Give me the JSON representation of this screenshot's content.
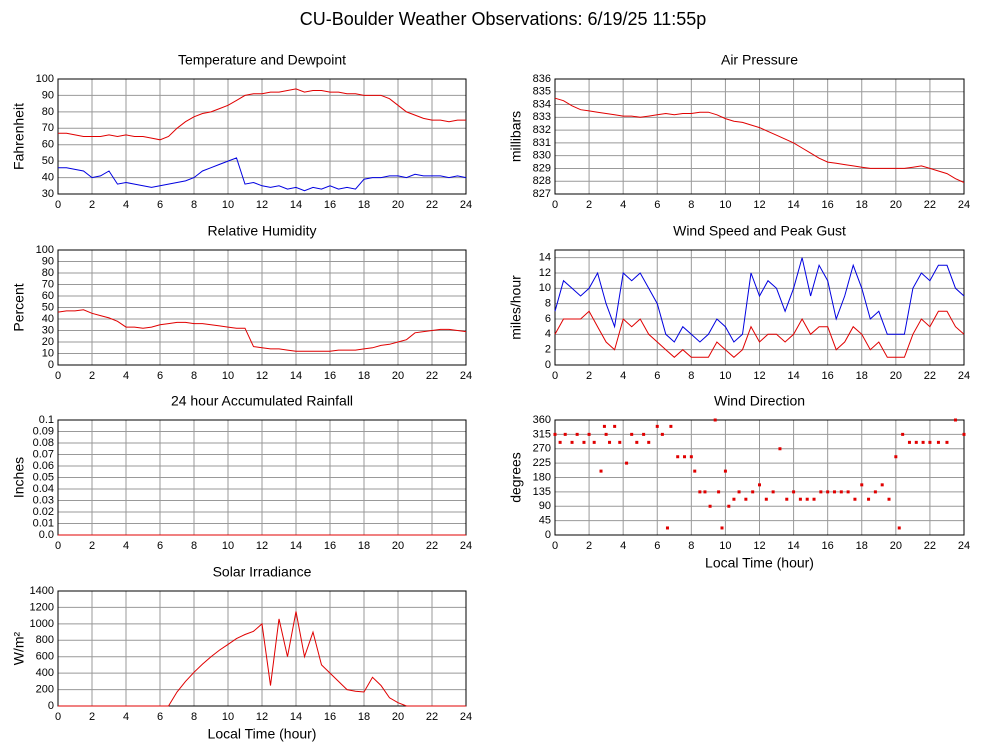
{
  "title": "CU-Boulder Weather Observations: 6/19/25 11:55p",
  "chart_data": [
    {
      "type": "line",
      "title": "Temperature and Dewpoint",
      "ylabel": "Fahrenheit",
      "x": [
        0,
        0.5,
        1,
        1.5,
        2,
        2.5,
        3,
        3.5,
        4,
        4.5,
        5,
        5.5,
        6,
        6.5,
        7,
        7.5,
        8,
        8.5,
        9,
        9.5,
        10,
        10.5,
        11,
        11.5,
        12,
        12.5,
        13,
        13.5,
        14,
        14.5,
        15,
        15.5,
        16,
        16.5,
        17,
        17.5,
        18,
        18.5,
        19,
        19.5,
        20,
        20.5,
        21,
        21.5,
        22,
        22.5,
        23,
        23.5,
        24
      ],
      "series": [
        {
          "color": "#e00000",
          "values": [
            67,
            67,
            66,
            65,
            65,
            65,
            66,
            65,
            66,
            65,
            65,
            64,
            63,
            65,
            70,
            74,
            77,
            79,
            80,
            82,
            84,
            87,
            90,
            91,
            91,
            92,
            92,
            93,
            94,
            92,
            93,
            93,
            92,
            92,
            91,
            91,
            90,
            90,
            90,
            88,
            84,
            80,
            78,
            76,
            75,
            75,
            74,
            75,
            75
          ]
        },
        {
          "color": "#0000e0",
          "values": [
            46,
            46,
            45,
            44,
            40,
            41,
            44,
            36,
            37,
            36,
            35,
            34,
            35,
            36,
            37,
            38,
            40,
            44,
            46,
            48,
            50,
            52,
            36,
            37,
            35,
            34,
            35,
            33,
            34,
            32,
            34,
            33,
            35,
            33,
            34,
            33,
            39,
            40,
            40,
            41,
            41,
            40,
            42,
            41,
            41,
            41,
            40,
            41,
            40
          ]
        }
      ],
      "xlim": [
        0,
        24
      ],
      "xticks": [
        0,
        2,
        4,
        6,
        8,
        10,
        12,
        14,
        16,
        18,
        20,
        22,
        24
      ],
      "ylim": [
        30,
        100
      ],
      "yticks": [
        30,
        40,
        50,
        60,
        70,
        80,
        90,
        100
      ],
      "grid": true
    },
    {
      "type": "line",
      "title": "Air Pressure",
      "ylabel": "millibars",
      "x": [
        0,
        0.5,
        1,
        1.5,
        2,
        2.5,
        3,
        3.5,
        4,
        4.5,
        5,
        5.5,
        6,
        6.5,
        7,
        7.5,
        8,
        8.5,
        9,
        9.5,
        10,
        10.5,
        11,
        11.5,
        12,
        12.5,
        13,
        13.5,
        14,
        14.5,
        15,
        15.5,
        16,
        16.5,
        17,
        17.5,
        18,
        18.5,
        19,
        19.5,
        20,
        20.5,
        21,
        21.5,
        22,
        22.5,
        23,
        23.5,
        24
      ],
      "series": [
        {
          "color": "#e00000",
          "values": [
            834.5,
            834.3,
            833.9,
            833.6,
            833.5,
            833.4,
            833.3,
            833.2,
            833.1,
            833.1,
            833.0,
            833.1,
            833.2,
            833.3,
            833.2,
            833.3,
            833.3,
            833.4,
            833.4,
            833.2,
            832.9,
            832.7,
            832.6,
            832.4,
            832.2,
            831.9,
            831.6,
            831.3,
            831.0,
            830.6,
            830.2,
            829.8,
            829.5,
            829.4,
            829.3,
            829.2,
            829.1,
            829.0,
            829.0,
            829.0,
            829.0,
            829.0,
            829.1,
            829.2,
            829.0,
            828.8,
            828.6,
            828.2,
            827.9
          ]
        }
      ],
      "xlim": [
        0,
        24
      ],
      "xticks": [
        0,
        2,
        4,
        6,
        8,
        10,
        12,
        14,
        16,
        18,
        20,
        22,
        24
      ],
      "ylim": [
        827,
        836
      ],
      "yticks": [
        827,
        828,
        829,
        830,
        831,
        832,
        833,
        834,
        835,
        836
      ],
      "grid": true
    },
    {
      "type": "line",
      "title": "Relative Humidity",
      "ylabel": "Percent",
      "x": [
        0,
        0.5,
        1,
        1.5,
        2,
        2.5,
        3,
        3.5,
        4,
        4.5,
        5,
        5.5,
        6,
        6.5,
        7,
        7.5,
        8,
        8.5,
        9,
        9.5,
        10,
        10.5,
        11,
        11.5,
        12,
        12.5,
        13,
        13.5,
        14,
        14.5,
        15,
        15.5,
        16,
        16.5,
        17,
        17.5,
        18,
        18.5,
        19,
        19.5,
        20,
        20.5,
        21,
        21.5,
        22,
        22.5,
        23,
        23.5,
        24
      ],
      "series": [
        {
          "color": "#e00000",
          "values": [
            46,
            47,
            47,
            48,
            45,
            43,
            41,
            38,
            33,
            33,
            32,
            33,
            35,
            36,
            37,
            37,
            36,
            36,
            35,
            34,
            33,
            32,
            32,
            16,
            15,
            14,
            14,
            13,
            12,
            12,
            12,
            12,
            12,
            13,
            13,
            13,
            14,
            15,
            17,
            18,
            20,
            22,
            28,
            29,
            30,
            31,
            31,
            30,
            29
          ]
        }
      ],
      "xlim": [
        0,
        24
      ],
      "xticks": [
        0,
        2,
        4,
        6,
        8,
        10,
        12,
        14,
        16,
        18,
        20,
        22,
        24
      ],
      "ylim": [
        0,
        100
      ],
      "yticks": [
        0,
        10,
        20,
        30,
        40,
        50,
        60,
        70,
        80,
        90,
        100
      ],
      "grid": true
    },
    {
      "type": "line",
      "title": "Wind Speed and Peak Gust",
      "ylabel": "miles/hour",
      "x": [
        0,
        0.5,
        1,
        1.5,
        2,
        2.5,
        3,
        3.5,
        4,
        4.5,
        5,
        5.5,
        6,
        6.5,
        7,
        7.5,
        8,
        8.5,
        9,
        9.5,
        10,
        10.5,
        11,
        11.5,
        12,
        12.5,
        13,
        13.5,
        14,
        14.5,
        15,
        15.5,
        16,
        16.5,
        17,
        17.5,
        18,
        18.5,
        19,
        19.5,
        20,
        20.5,
        21,
        21.5,
        22,
        22.5,
        23,
        23.5,
        24
      ],
      "series": [
        {
          "color": "#0000e0",
          "values": [
            7,
            11,
            10,
            9,
            10,
            12,
            8,
            5,
            12,
            11,
            12,
            10,
            8,
            4,
            3,
            5,
            4,
            3,
            4,
            6,
            5,
            3,
            4,
            12,
            9,
            11,
            10,
            7,
            10,
            14,
            9,
            13,
            11,
            6,
            9,
            13,
            10,
            6,
            7,
            4,
            4,
            4,
            10,
            12,
            11,
            13,
            13,
            10,
            9
          ]
        },
        {
          "color": "#e00000",
          "values": [
            4,
            6,
            6,
            6,
            7,
            5,
            3,
            2,
            6,
            5,
            6,
            4,
            3,
            2,
            1,
            2,
            1,
            1,
            1,
            3,
            2,
            1,
            2,
            5,
            3,
            4,
            4,
            3,
            4,
            6,
            4,
            5,
            5,
            2,
            3,
            5,
            4,
            2,
            3,
            1,
            1,
            1,
            4,
            6,
            5,
            7,
            7,
            5,
            4
          ]
        }
      ],
      "xlim": [
        0,
        24
      ],
      "xticks": [
        0,
        2,
        4,
        6,
        8,
        10,
        12,
        14,
        16,
        18,
        20,
        22,
        24
      ],
      "ylim": [
        0,
        15
      ],
      "yticks": [
        0,
        2,
        4,
        6,
        8,
        10,
        12,
        14
      ],
      "grid": true
    },
    {
      "type": "line",
      "title": "24 hour Accumulated Rainfall",
      "ylabel": "Inches",
      "x": [
        0,
        24
      ],
      "series": [
        {
          "color": "#e00000",
          "values": [
            0,
            0
          ]
        }
      ],
      "xlim": [
        0,
        24
      ],
      "xticks": [
        0,
        2,
        4,
        6,
        8,
        10,
        12,
        14,
        16,
        18,
        20,
        22,
        24
      ],
      "ylim": [
        0,
        0.1
      ],
      "yticks": [
        {
          "value": 0,
          "label": "0.0"
        },
        0.01,
        0.02,
        0.03,
        0.04,
        0.05,
        0.06,
        0.07,
        0.08,
        0.09,
        0.1
      ],
      "grid": true
    },
    {
      "type": "scatter",
      "title": "Wind Direction",
      "ylabel": "degrees",
      "xlabel": "Local Time (hour)",
      "x": [
        0,
        0.3,
        0.6,
        1,
        1.3,
        1.7,
        2,
        2.3,
        2.7,
        2.9,
        3,
        3.2,
        3.5,
        3.8,
        4.2,
        4.5,
        4.8,
        5.2,
        5.5,
        6,
        6.3,
        6.6,
        6.8,
        7.2,
        7.6,
        8,
        8.2,
        8.5,
        8.8,
        9.1,
        9.4,
        9.6,
        9.8,
        10,
        10.2,
        10.5,
        10.8,
        11.2,
        11.6,
        12,
        12.4,
        12.8,
        13.2,
        13.6,
        14,
        14.4,
        14.8,
        15.2,
        15.6,
        16,
        16.4,
        16.8,
        17.2,
        17.6,
        18,
        18.4,
        18.8,
        19.2,
        19.6,
        20,
        20.2,
        20.4,
        20.8,
        21.2,
        21.6,
        22,
        22.5,
        23,
        23.5,
        24
      ],
      "series": [
        {
          "color": "#e00000",
          "values": [
            315,
            290,
            315,
            290,
            315,
            290,
            315,
            290,
            200,
            340,
            315,
            290,
            340,
            290,
            225,
            315,
            290,
            315,
            290,
            340,
            315,
            22,
            340,
            245,
            245,
            245,
            200,
            135,
            135,
            90,
            360,
            135,
            22,
            200,
            90,
            112,
            135,
            112,
            135,
            157,
            112,
            135,
            270,
            112,
            135,
            112,
            112,
            112,
            135,
            135,
            135,
            135,
            135,
            112,
            157,
            112,
            135,
            157,
            112,
            245,
            22,
            315,
            290,
            290,
            290,
            290,
            290,
            290,
            360,
            315
          ]
        }
      ],
      "xlim": [
        0,
        24
      ],
      "xticks": [
        0,
        2,
        4,
        6,
        8,
        10,
        12,
        14,
        16,
        18,
        20,
        22,
        24
      ],
      "ylim": [
        0,
        360
      ],
      "yticks": [
        0,
        45,
        90,
        135,
        180,
        225,
        270,
        315,
        360
      ],
      "grid": true
    },
    {
      "type": "line",
      "title": "Solar Irradiance",
      "ylabel": "W/m²",
      "xlabel": "Local Time (hour)",
      "x": [
        0,
        0.5,
        1,
        1.5,
        2,
        2.5,
        3,
        3.5,
        4,
        4.5,
        5,
        5.5,
        6,
        6.5,
        7,
        7.5,
        8,
        8.5,
        9,
        9.5,
        10,
        10.5,
        11,
        11.5,
        12,
        12.5,
        13,
        13.5,
        14,
        14.5,
        15,
        15.5,
        16,
        16.5,
        17,
        17.5,
        18,
        18.5,
        19,
        19.5,
        20,
        20.5,
        21,
        21.5,
        22,
        22.5,
        23,
        23.5,
        24
      ],
      "series": [
        {
          "color": "#e00000",
          "values": [
            0,
            0,
            0,
            0,
            0,
            0,
            0,
            0,
            0,
            0,
            0,
            0,
            0,
            0,
            170,
            300,
            410,
            510,
            600,
            680,
            750,
            820,
            870,
            910,
            1000,
            250,
            1060,
            600,
            1150,
            600,
            900,
            500,
            400,
            300,
            200,
            180,
            170,
            350,
            250,
            100,
            40,
            0,
            0,
            0,
            0,
            0,
            0,
            0,
            0
          ]
        }
      ],
      "xlim": [
        0,
        24
      ],
      "xticks": [
        0,
        2,
        4,
        6,
        8,
        10,
        12,
        14,
        16,
        18,
        20,
        22,
        24
      ],
      "ylim": [
        0,
        1400
      ],
      "yticks": [
        0,
        200,
        400,
        600,
        800,
        1000,
        1200,
        1400
      ],
      "grid": true
    }
  ]
}
